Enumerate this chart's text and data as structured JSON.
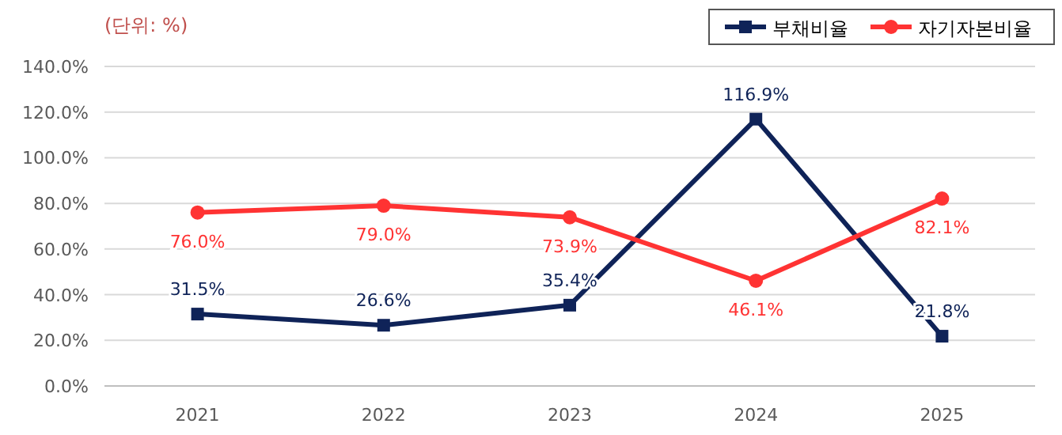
{
  "chart_data": {
    "type": "line",
    "categories": [
      "2021",
      "2022",
      "2023",
      "2024",
      "2025"
    ],
    "series": [
      {
        "name": "부채비율",
        "color": "#0f2358",
        "marker": "square",
        "values": [
          31.5,
          26.6,
          35.4,
          116.9,
          21.8
        ],
        "value_labels": [
          "31.5%",
          "26.6%",
          "35.4%",
          "116.9%",
          "21.8%"
        ]
      },
      {
        "name": "자기자본비율",
        "color": "#ff3333",
        "marker": "circle",
        "values": [
          76.0,
          79.0,
          73.9,
          46.1,
          82.1
        ],
        "value_labels": [
          "76.0%",
          "79.0%",
          "73.9%",
          "46.1%",
          "82.1%"
        ]
      }
    ],
    "ylim": [
      0,
      140
    ],
    "yticks": [
      {
        "value": 0,
        "label": "0.0%"
      },
      {
        "value": 20,
        "label": "20.0%"
      },
      {
        "value": 40,
        "label": "40.0%"
      },
      {
        "value": 60,
        "label": "60.0%"
      },
      {
        "value": 80,
        "label": "80.0%"
      },
      {
        "value": 100,
        "label": "100.0%"
      },
      {
        "value": 120,
        "label": "120.0%"
      },
      {
        "value": 140,
        "label": "140.0%"
      }
    ],
    "grid": "y",
    "legend": "top right",
    "line_style": "solid",
    "annotations": [
      "(단위: %)"
    ]
  }
}
